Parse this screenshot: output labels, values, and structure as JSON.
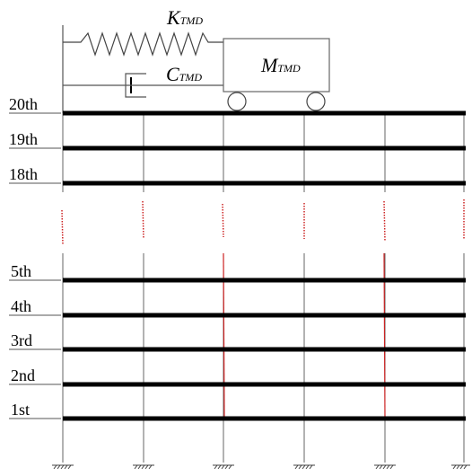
{
  "tmd": {
    "spring": {
      "symbol": "K",
      "subscript": "TMD"
    },
    "damper": {
      "symbol": "C",
      "subscript": "TMD"
    },
    "mass": {
      "symbol": "M",
      "subscript": "TMD"
    }
  },
  "floors": {
    "top": [
      "20th",
      "19th",
      "18th"
    ],
    "bottom": [
      "5th",
      "4th",
      "3rd",
      "2nd",
      "1st"
    ]
  },
  "colors": {
    "line": "#000000",
    "frame": "#555555",
    "break_mark": "#cc2222"
  }
}
